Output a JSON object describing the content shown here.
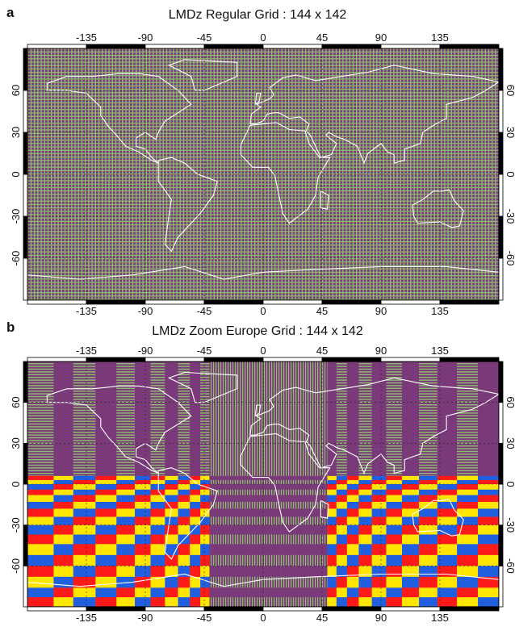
{
  "panels": [
    {
      "letter": "a",
      "title": "LMDz Regular Grid : 144 x 142",
      "type": "regular"
    },
    {
      "letter": "b",
      "title": "LMDz Zoom Europe Grid : 144 x 142",
      "type": "zoom"
    }
  ],
  "axes": {
    "lon_ticks": [
      "-135",
      "-90",
      "-45",
      "0",
      "45",
      "90",
      "135"
    ],
    "lat_ticks": [
      "60",
      "30",
      "0",
      "-30",
      "-60"
    ]
  },
  "colors": {
    "purple": "#7a3a7a",
    "green": "#8fbf6f",
    "blue": "#1f5fe0",
    "red": "#ff1a1a",
    "yellow": "#ffe600",
    "coast": "#ffffff"
  }
}
